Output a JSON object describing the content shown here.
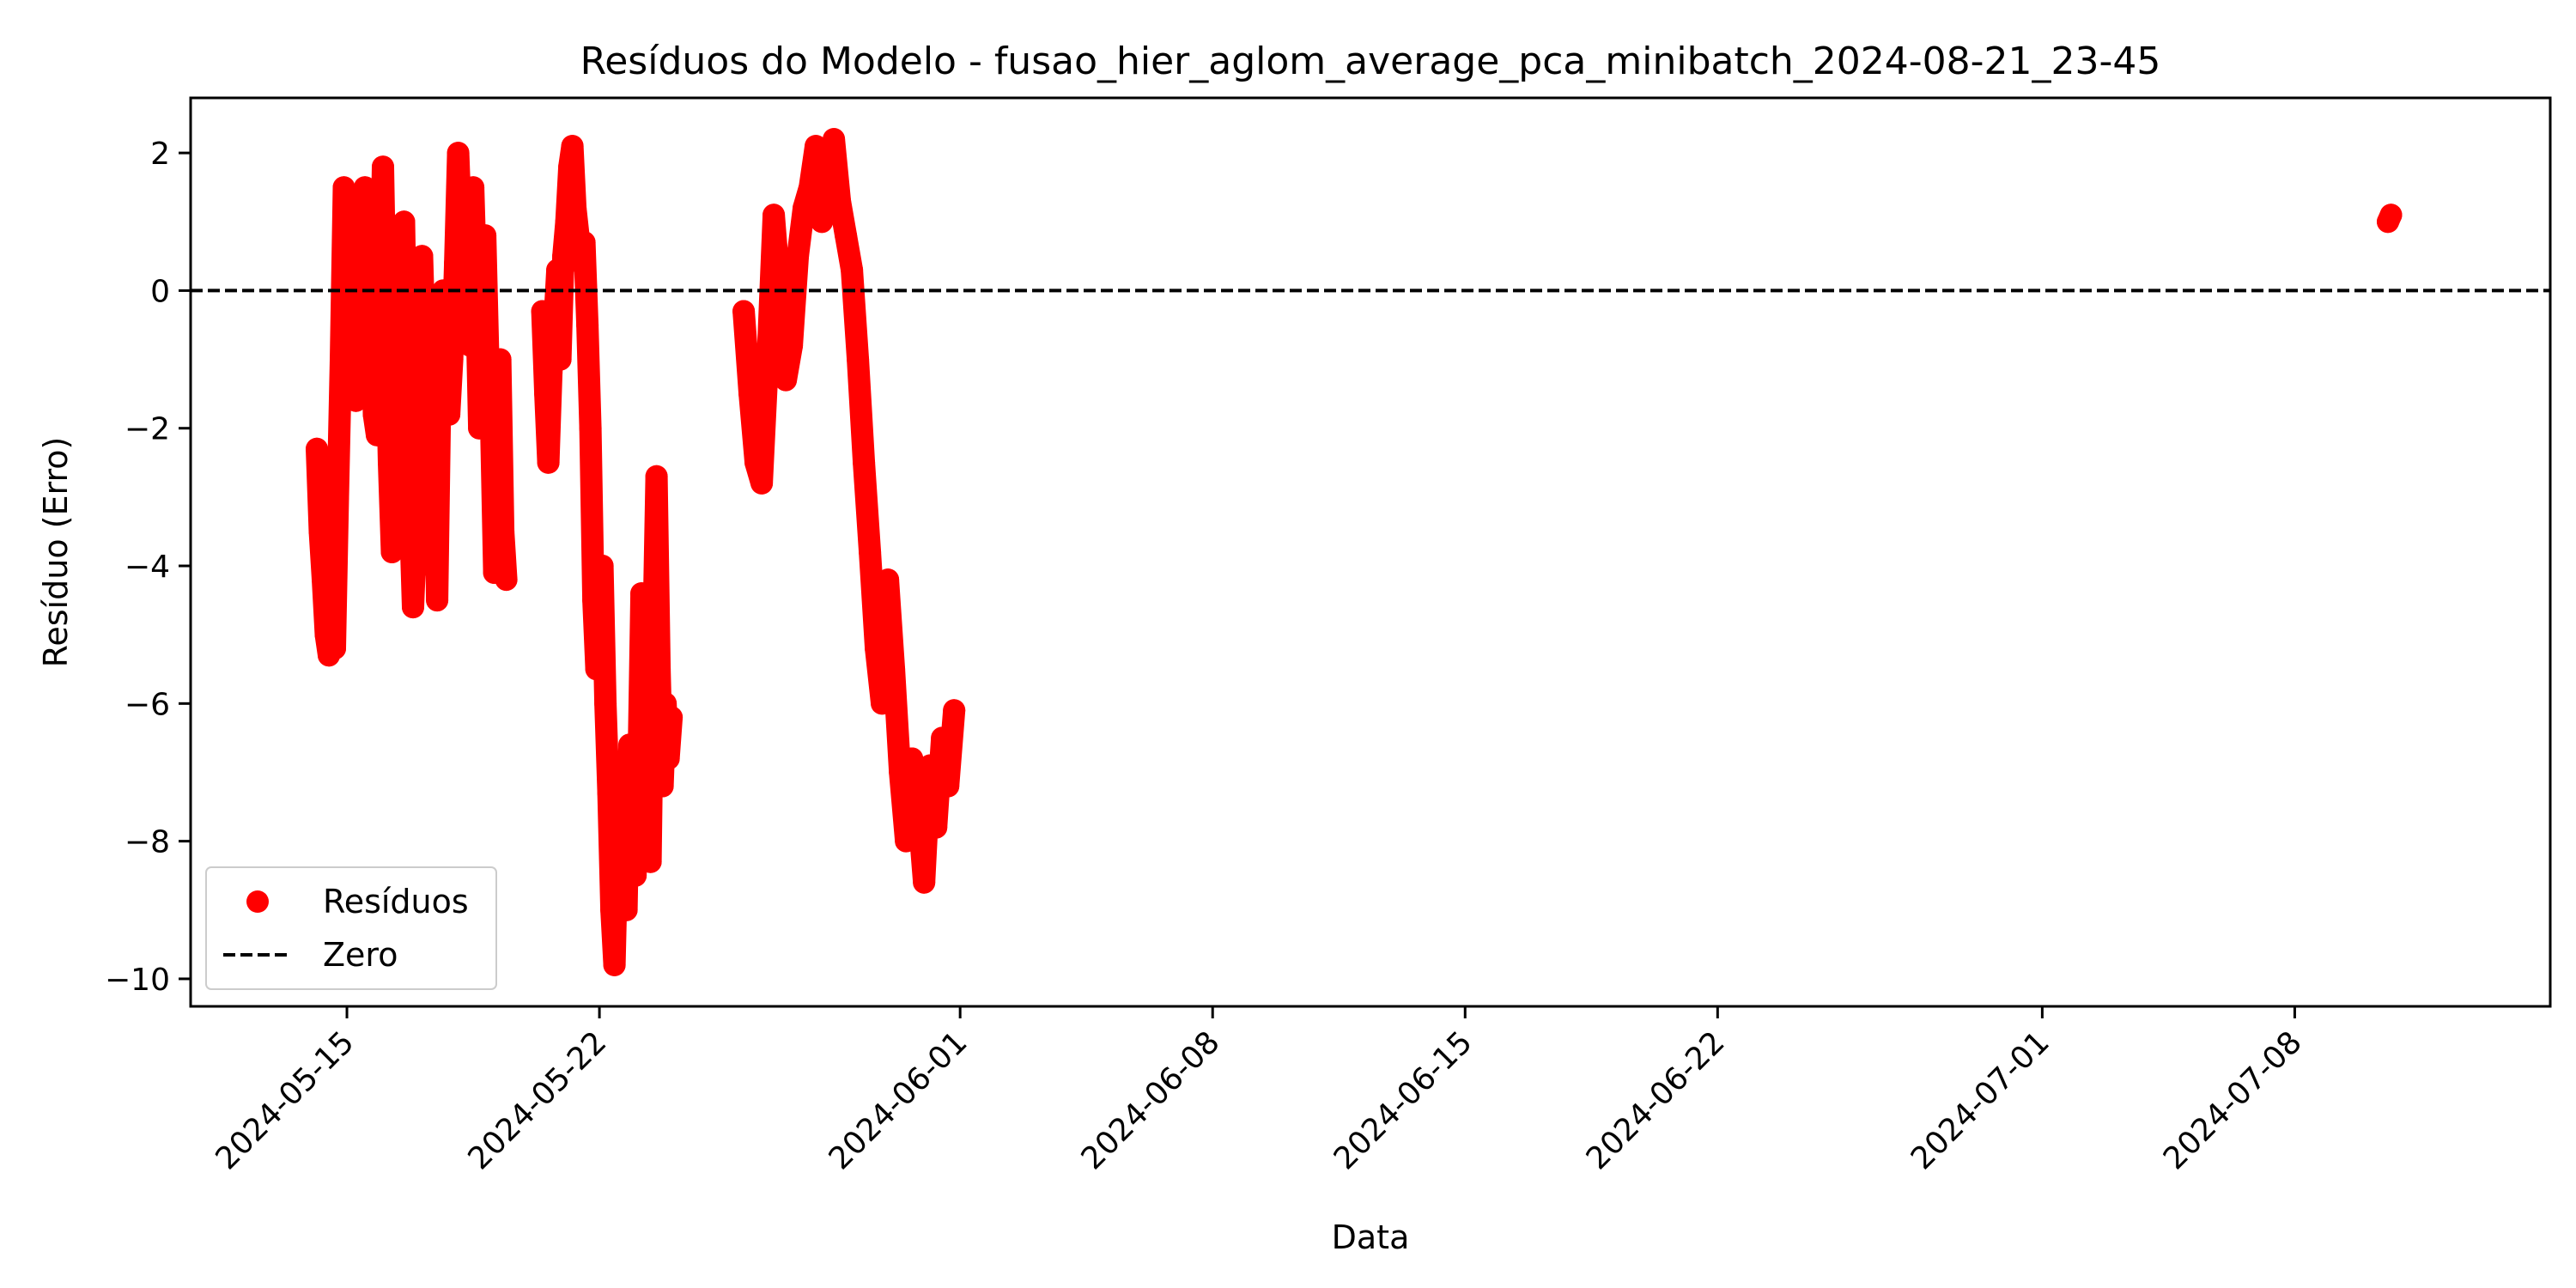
{
  "chart_data": {
    "type": "scatter",
    "title": "Resíduos do Modelo - fusao_hier_aglom_average_pca_minibatch_2024-08-21_23-45",
    "xlabel": "Data",
    "ylabel": "Resíduo (Erro)",
    "x_axis_type": "date",
    "xlim": [
      "2024-05-10T16:00",
      "2024-07-15T02:00"
    ],
    "ylim": [
      -10.4,
      2.8
    ],
    "x_ticks": [
      "2024-05-15",
      "2024-05-22",
      "2024-06-01",
      "2024-06-08",
      "2024-06-15",
      "2024-06-22",
      "2024-07-01",
      "2024-07-08"
    ],
    "y_ticks": [
      2,
      0,
      -2,
      -4,
      -6,
      -8,
      -10
    ],
    "y_tick_labels": [
      "2",
      "0",
      "−2",
      "−4",
      "−6",
      "−8",
      "−10"
    ],
    "grid": false,
    "reference_lines": [
      {
        "name": "Zero",
        "y": 0,
        "color": "#000000",
        "style": "dashed"
      }
    ],
    "legend": {
      "position": "lower-left",
      "entries": [
        "Resíduos",
        "Zero"
      ]
    },
    "series": [
      {
        "name": "Resíduos",
        "color": "#ff0000",
        "marker": "circle",
        "points": [
          [
            "2024-05-14T04:00",
            -2.3
          ],
          [
            "2024-05-14T06:00",
            -3.5
          ],
          [
            "2024-05-14T08:00",
            -4.2
          ],
          [
            "2024-05-14T10:00",
            -5.0
          ],
          [
            "2024-05-14T12:00",
            -5.3
          ],
          [
            "2024-05-14T14:00",
            -4.4
          ],
          [
            "2024-05-14T16:00",
            -5.2
          ],
          [
            "2024-05-14T18:00",
            -3.0
          ],
          [
            "2024-05-14T20:00",
            -1.0
          ],
          [
            "2024-05-14T22:00",
            1.5
          ],
          [
            "2024-05-15T00:00",
            0.6
          ],
          [
            "2024-05-15T02:00",
            -1.5
          ],
          [
            "2024-05-15T04:00",
            1.2
          ],
          [
            "2024-05-15T06:00",
            -1.6
          ],
          [
            "2024-05-15T08:00",
            -1.2
          ],
          [
            "2024-05-15T10:00",
            0.3
          ],
          [
            "2024-05-15T12:00",
            1.5
          ],
          [
            "2024-05-15T14:00",
            -0.5
          ],
          [
            "2024-05-15T16:00",
            0.5
          ],
          [
            "2024-05-15T18:00",
            -1.8
          ],
          [
            "2024-05-15T20:00",
            -2.1
          ],
          [
            "2024-05-15T22:00",
            -0.5
          ],
          [
            "2024-05-16T00:00",
            1.8
          ],
          [
            "2024-05-16T02:00",
            -0.6
          ],
          [
            "2024-05-16T04:00",
            -2.5
          ],
          [
            "2024-05-16T06:00",
            -3.8
          ],
          [
            "2024-05-16T08:00",
            -1.0
          ],
          [
            "2024-05-16T10:00",
            0.5
          ],
          [
            "2024-05-16T12:00",
            -2.5
          ],
          [
            "2024-05-16T14:00",
            1.0
          ],
          [
            "2024-05-16T16:00",
            -1.5
          ],
          [
            "2024-05-16T18:00",
            -3.2
          ],
          [
            "2024-05-16T20:00",
            -4.6
          ],
          [
            "2024-05-16T22:00",
            -3.5
          ],
          [
            "2024-05-17T00:00",
            -1.5
          ],
          [
            "2024-05-17T02:00",
            0.5
          ],
          [
            "2024-05-17T04:00",
            -1.0
          ],
          [
            "2024-05-17T06:00",
            -3.0
          ],
          [
            "2024-05-17T08:00",
            -4.0
          ],
          [
            "2024-05-17T10:00",
            -2.0
          ],
          [
            "2024-05-17T12:00",
            -4.5
          ],
          [
            "2024-05-17T14:00",
            -1.5
          ],
          [
            "2024-05-17T16:00",
            0.0
          ],
          [
            "2024-05-17T18:00",
            -0.8
          ],
          [
            "2024-05-17T20:00",
            -1.8
          ],
          [
            "2024-05-17T22:00",
            -1.0
          ],
          [
            "2024-05-18T00:00",
            0.4
          ],
          [
            "2024-05-18T02:00",
            2.0
          ],
          [
            "2024-05-18T04:00",
            0.8
          ],
          [
            "2024-05-18T06:00",
            -0.3
          ],
          [
            "2024-05-18T08:00",
            0.6
          ],
          [
            "2024-05-18T10:00",
            -0.8
          ],
          [
            "2024-05-18T12:00",
            1.5
          ],
          [
            "2024-05-18T14:00",
            0.0
          ],
          [
            "2024-05-18T16:00",
            -2.0
          ],
          [
            "2024-05-18T18:00",
            -0.5
          ],
          [
            "2024-05-18T20:00",
            0.8
          ],
          [
            "2024-05-18T22:00",
            -1.0
          ],
          [
            "2024-05-19T00:00",
            -2.0
          ],
          [
            "2024-05-19T02:00",
            -4.1
          ],
          [
            "2024-05-19T04:00",
            -2.0
          ],
          [
            "2024-05-19T06:00",
            -1.0
          ],
          [
            "2024-05-19T08:00",
            -3.5
          ],
          [
            "2024-05-19T10:00",
            -4.2
          ],
          [
            "2024-05-20T10:00",
            -0.3
          ],
          [
            "2024-05-20T12:00",
            -1.5
          ],
          [
            "2024-05-20T14:00",
            -2.5
          ],
          [
            "2024-05-20T16:00",
            -1.2
          ],
          [
            "2024-05-20T18:00",
            -0.5
          ],
          [
            "2024-05-20T20:00",
            0.3
          ],
          [
            "2024-05-20T22:00",
            -1.0
          ],
          [
            "2024-05-21T00:00",
            0.5
          ],
          [
            "2024-05-21T02:00",
            1.0
          ],
          [
            "2024-05-21T04:00",
            1.8
          ],
          [
            "2024-05-21T06:00",
            2.1
          ],
          [
            "2024-05-21T08:00",
            1.2
          ],
          [
            "2024-05-21T10:00",
            0.8
          ],
          [
            "2024-05-21T12:00",
            0.4
          ],
          [
            "2024-05-21T14:00",
            0.7
          ],
          [
            "2024-05-21T16:00",
            -0.5
          ],
          [
            "2024-05-21T18:00",
            -2.0
          ],
          [
            "2024-05-21T20:00",
            -4.5
          ],
          [
            "2024-05-21T22:00",
            -5.5
          ],
          [
            "2024-05-22T00:00",
            -5.0
          ],
          [
            "2024-05-22T02:00",
            -4.0
          ],
          [
            "2024-05-22T04:00",
            -6.0
          ],
          [
            "2024-05-22T06:00",
            -7.3
          ],
          [
            "2024-05-22T08:00",
            -9.0
          ],
          [
            "2024-05-22T10:00",
            -9.8
          ],
          [
            "2024-05-22T12:00",
            -8.0
          ],
          [
            "2024-05-22T14:00",
            -7.0
          ],
          [
            "2024-05-22T16:00",
            -8.5
          ],
          [
            "2024-05-22T18:00",
            -9.0
          ],
          [
            "2024-05-22T20:00",
            -6.6
          ],
          [
            "2024-05-22T22:00",
            -7.5
          ],
          [
            "2024-05-23T00:00",
            -8.5
          ],
          [
            "2024-05-23T02:00",
            -7.0
          ],
          [
            "2024-05-23T04:00",
            -4.4
          ],
          [
            "2024-05-23T06:00",
            -6.0
          ],
          [
            "2024-05-23T08:00",
            -7.5
          ],
          [
            "2024-05-23T10:00",
            -8.3
          ],
          [
            "2024-05-23T12:00",
            -5.0
          ],
          [
            "2024-05-23T14:00",
            -2.7
          ],
          [
            "2024-05-23T16:00",
            -5.5
          ],
          [
            "2024-05-23T18:00",
            -7.2
          ],
          [
            "2024-05-23T20:00",
            -6.0
          ],
          [
            "2024-05-23T22:00",
            -6.8
          ],
          [
            "2024-05-24T00:00",
            -6.2
          ],
          [
            "2024-05-26T00:00",
            -0.3
          ],
          [
            "2024-05-26T04:00",
            -1.5
          ],
          [
            "2024-05-26T08:00",
            -2.5
          ],
          [
            "2024-05-26T12:00",
            -2.8
          ],
          [
            "2024-05-26T16:00",
            -1.0
          ],
          [
            "2024-05-26T20:00",
            1.1
          ],
          [
            "2024-05-27T00:00",
            0.0
          ],
          [
            "2024-05-27T04:00",
            -1.3
          ],
          [
            "2024-05-27T08:00",
            -0.8
          ],
          [
            "2024-05-27T12:00",
            0.5
          ],
          [
            "2024-05-27T16:00",
            1.2
          ],
          [
            "2024-05-27T20:00",
            1.5
          ],
          [
            "2024-05-28T00:00",
            2.1
          ],
          [
            "2024-05-28T04:00",
            1.0
          ],
          [
            "2024-05-28T08:00",
            1.4
          ],
          [
            "2024-05-28T12:00",
            2.2
          ],
          [
            "2024-05-28T16:00",
            1.3
          ],
          [
            "2024-05-28T20:00",
            0.8
          ],
          [
            "2024-05-29T00:00",
            0.3
          ],
          [
            "2024-05-29T04:00",
            -1.0
          ],
          [
            "2024-05-29T08:00",
            -2.5
          ],
          [
            "2024-05-29T12:00",
            -3.8
          ],
          [
            "2024-05-29T16:00",
            -5.2
          ],
          [
            "2024-05-29T20:00",
            -6.0
          ],
          [
            "2024-05-30T00:00",
            -4.2
          ],
          [
            "2024-05-30T04:00",
            -5.5
          ],
          [
            "2024-05-30T08:00",
            -7.0
          ],
          [
            "2024-05-30T12:00",
            -8.0
          ],
          [
            "2024-05-30T16:00",
            -6.8
          ],
          [
            "2024-05-30T20:00",
            -7.5
          ],
          [
            "2024-05-31T00:00",
            -8.6
          ],
          [
            "2024-05-31T04:00",
            -6.9
          ],
          [
            "2024-05-31T08:00",
            -7.8
          ],
          [
            "2024-05-31T12:00",
            -6.5
          ],
          [
            "2024-05-31T16:00",
            -7.2
          ],
          [
            "2024-05-31T20:00",
            -6.1
          ],
          [
            "2024-07-10T14:00",
            1.0
          ],
          [
            "2024-07-10T16:00",
            1.1
          ]
        ]
      }
    ]
  }
}
